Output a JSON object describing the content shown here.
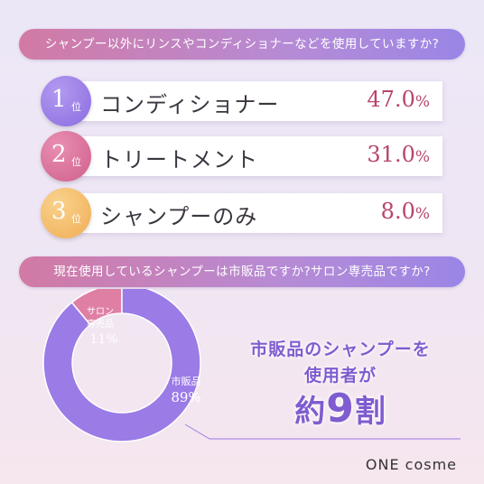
{
  "question1": "シャンプー以外にリンスやコンディショナーなどを使用していますか?",
  "question2": "現在使用しているシャンプーは市販品ですか?サロン専売品ですか?",
  "ranking": [
    {
      "rank": "1",
      "rank_suffix": "位",
      "label": "コンディショナー",
      "value": "47.0",
      "unit": "%"
    },
    {
      "rank": "2",
      "rank_suffix": "位",
      "label": "トリートメント",
      "value": "31.0",
      "unit": "%"
    },
    {
      "rank": "3",
      "rank_suffix": "位",
      "label": "シャンプーのみ",
      "value": "8.0",
      "unit": "%"
    }
  ],
  "headline": {
    "line1": "市販品のシャンプーを",
    "line2": "使用者が",
    "line3_pre": "約",
    "line3_num": "9",
    "line3_post": "割"
  },
  "brand": "ONE cosme",
  "colors": {
    "donut_main": "#9b7be6",
    "donut_salon": "#e07fa4",
    "headline": "#7f5ccf",
    "rank_value": "#b8446e"
  },
  "chart_data": [
    {
      "type": "bar",
      "categories": [
        "コンディショナー",
        "トリートメント",
        "シャンプーのみ"
      ],
      "values": [
        47.0,
        31.0,
        8.0
      ]
    },
    {
      "type": "pie",
      "style": "donut",
      "slices": [
        {
          "label": "市販品",
          "value": 89,
          "display": "89%"
        },
        {
          "label": "サロン専売品",
          "label_lines": [
            "サロン",
            "専売品"
          ],
          "value": 11,
          "display": "11%"
        }
      ]
    }
  ]
}
